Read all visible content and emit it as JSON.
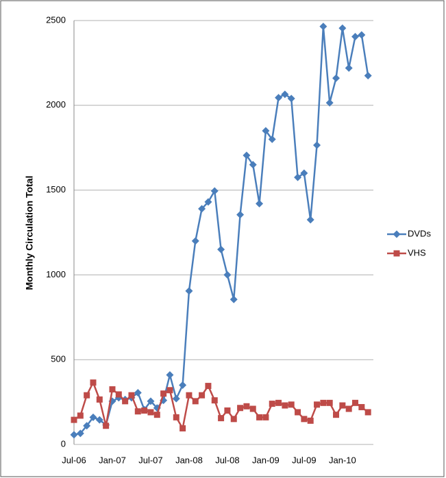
{
  "chart_data": {
    "type": "line",
    "y_label": "Monthly Circulation Total",
    "categories": [
      "Jul-06",
      null,
      null,
      null,
      null,
      null,
      "Jan-07",
      null,
      null,
      null,
      null,
      null,
      "Jul-07",
      null,
      null,
      null,
      null,
      null,
      "Jan-08",
      null,
      null,
      null,
      null,
      null,
      "Jul-08",
      null,
      null,
      null,
      null,
      null,
      "Jan-09",
      null,
      null,
      null,
      null,
      null,
      "Jul-09",
      null,
      null,
      null,
      null,
      null,
      "Jan-10",
      null,
      null,
      null,
      null
    ],
    "series": [
      {
        "name": "DVDs",
        "color": "#4a7ebb",
        "marker": "diamond",
        "values": [
          57,
          65,
          110,
          160,
          145,
          115,
          255,
          275,
          265,
          275,
          305,
          205,
          255,
          215,
          260,
          410,
          270,
          350,
          905,
          1200,
          1390,
          1430,
          1495,
          1150,
          1000,
          855,
          1355,
          1705,
          1650,
          1420,
          1850,
          1800,
          2045,
          2065,
          2040,
          1575,
          1600,
          1325,
          1765,
          2465,
          2015,
          2160,
          2455,
          2220,
          2405,
          2415,
          2175
        ]
      },
      {
        "name": "VHS",
        "color": "#be4b48",
        "marker": "square",
        "values": [
          145,
          170,
          290,
          365,
          265,
          110,
          325,
          295,
          255,
          290,
          195,
          200,
          190,
          175,
          300,
          320,
          160,
          95,
          290,
          255,
          290,
          345,
          260,
          155,
          200,
          150,
          215,
          225,
          210,
          160,
          160,
          240,
          245,
          230,
          235,
          190,
          150,
          140,
          235,
          245,
          245,
          175,
          230,
          210,
          245,
          220,
          190
        ]
      }
    ],
    "ylim": [
      0,
      2500
    ],
    "yticks": [
      0,
      500,
      1000,
      1500,
      2000,
      2500
    ],
    "grid": true,
    "legend": "right"
  }
}
